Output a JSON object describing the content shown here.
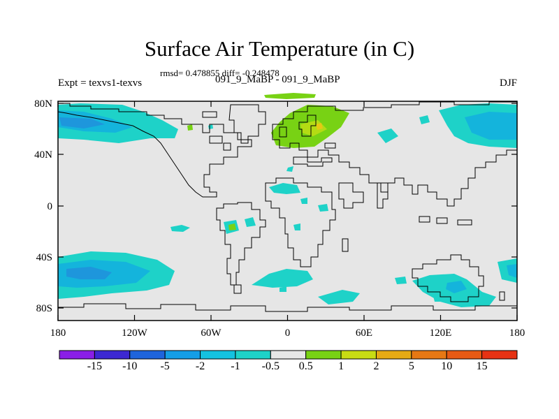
{
  "title": "Surface Air Temperature (in C)",
  "stats": "rmsd= 0.478855 diff= -0.248478",
  "left_label": "Expt = texvs1-texvs",
  "center_label": "091_9_MaBP - 091_9_MaBP",
  "right_label": "DJF",
  "x_ticks": [
    "180",
    "120W",
    "60W",
    "0",
    "60E",
    "120E",
    "180"
  ],
  "y_ticks": [
    "80N",
    "40N",
    "0",
    "40S",
    "80S"
  ],
  "colorbar": {
    "labels": [
      "-15",
      "-10",
      "-5",
      "-2",
      "-1",
      "-0.5",
      "0.5",
      "1",
      "2",
      "5",
      "10",
      "15"
    ],
    "colors": [
      "#8a1ee6",
      "#3c28d2",
      "#1e64dc",
      "#149ee6",
      "#14c2e0",
      "#1ed2c8",
      "#e6e6e6",
      "#78d214",
      "#c8dc14",
      "#e6aa14",
      "#e67814",
      "#e65a14",
      "#e63214"
    ]
  },
  "palette": {
    "background": "#e6e6e6",
    "cool": "#1ed2c8",
    "cooler": "#14b4dc",
    "coolest": "#1e96dc",
    "warm": "#78d214",
    "warmer": "#b4dc14",
    "warmest": "#e6c814"
  }
}
